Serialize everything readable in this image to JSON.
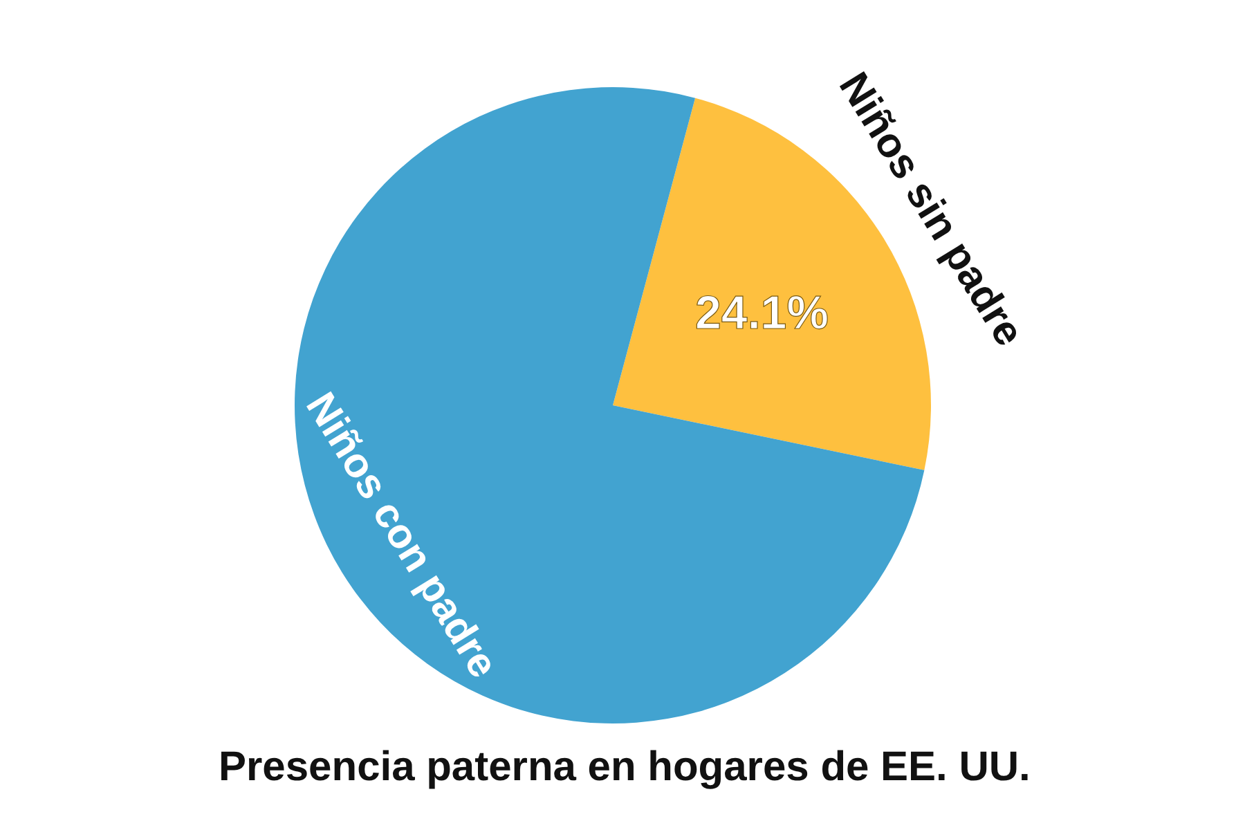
{
  "chart_data": {
    "type": "pie",
    "title": "Presencia paterna en hogares de EE. UU.",
    "categories": [
      "Niños sin padre",
      "Niños con padre"
    ],
    "values": [
      24.1,
      75.9
    ],
    "colors": [
      "#fec03f",
      "#42a3d0"
    ],
    "value_labels": [
      "24.1%",
      null
    ]
  }
}
